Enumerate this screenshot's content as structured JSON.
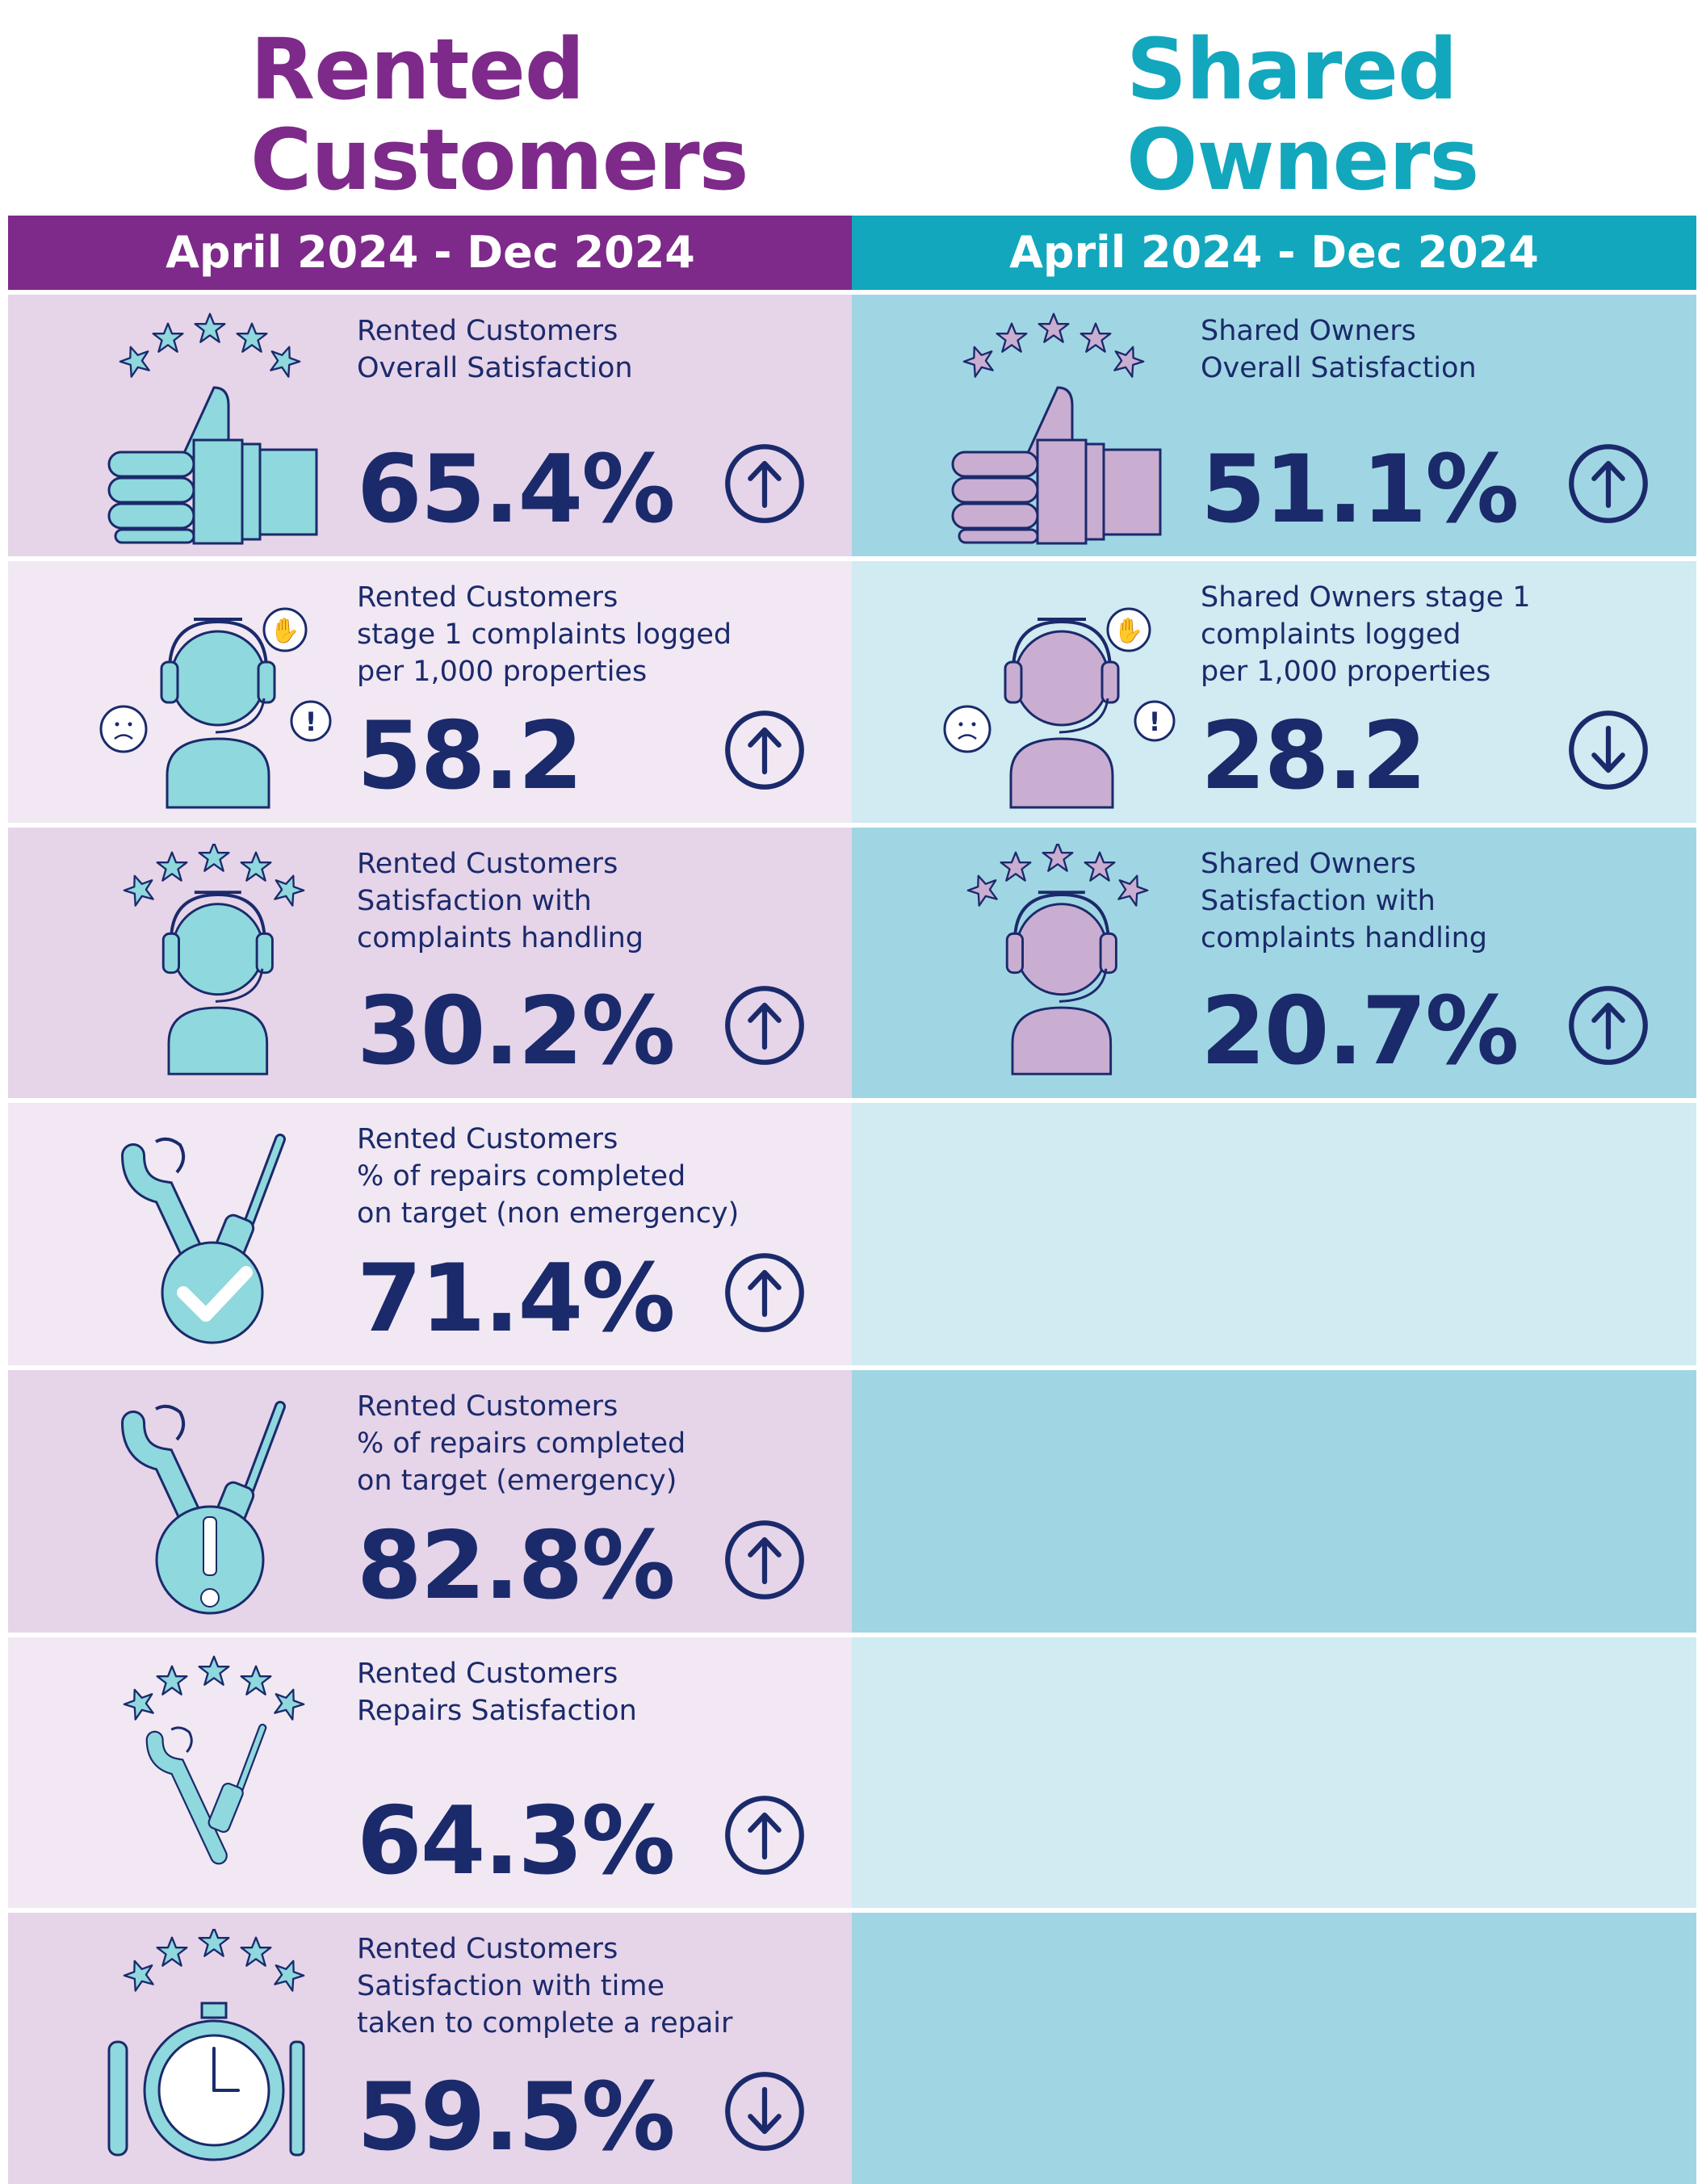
{
  "rented": {
    "heading": [
      "Rented",
      "Customers"
    ],
    "period": "April 2024 - Dec 2024",
    "metrics": [
      {
        "label": [
          "Rented Customers",
          "Overall Satisfaction"
        ],
        "value": "65.4%",
        "trend": "up",
        "icon": "thumbs-up-stars-icon"
      },
      {
        "label": [
          "Rented Customers",
          "stage 1 complaints logged",
          "per 1,000 properties"
        ],
        "value": "58.2",
        "trend": "up",
        "icon": "complaints-agent-icon"
      },
      {
        "label": [
          "Rented Customers",
          "Satisfaction with",
          "complaints handling"
        ],
        "value": "30.2%",
        "trend": "up",
        "icon": "agent-stars-icon"
      },
      {
        "label": [
          "Rented Customers",
          "% of repairs completed",
          "on target (non emergency)"
        ],
        "value": "71.4%",
        "trend": "up",
        "icon": "tools-check-icon"
      },
      {
        "label": [
          "Rented Customers",
          "% of repairs completed",
          "on target (emergency)"
        ],
        "value": "82.8%",
        "trend": "up",
        "icon": "tools-alert-icon"
      },
      {
        "label": [
          "Rented Customers",
          "Repairs Satisfaction"
        ],
        "value": "64.3%",
        "trend": "up",
        "icon": "tools-stars-icon"
      },
      {
        "label": [
          "Rented Customers",
          "Satisfaction with time",
          "taken to complete a repair"
        ],
        "value": "59.5%",
        "trend": "down",
        "icon": "stopwatch-tools-icon"
      }
    ]
  },
  "shared": {
    "heading": [
      "Shared",
      "Owners"
    ],
    "period": "April 2024 - Dec 2024",
    "metrics": [
      {
        "label": [
          "Shared Owners",
          "Overall Satisfaction"
        ],
        "value": "51.1%",
        "trend": "up",
        "icon": "thumbs-up-stars-icon"
      },
      {
        "label": [
          "Shared Owners stage 1",
          "complaints logged",
          "per 1,000 properties"
        ],
        "value": "28.2",
        "trend": "down",
        "icon": "complaints-agent-icon"
      },
      {
        "label": [
          "Shared Owners",
          "Satisfaction with",
          "complaints handling"
        ],
        "value": "20.7%",
        "trend": "up",
        "icon": "agent-stars-icon"
      }
    ]
  },
  "colors": {
    "rented_accent": "#7e2a8a",
    "shared_accent": "#12a7bd",
    "text": "#1b2a6b",
    "icon_teal": "#8fd8dd",
    "icon_lilac": "#c9aed2"
  }
}
